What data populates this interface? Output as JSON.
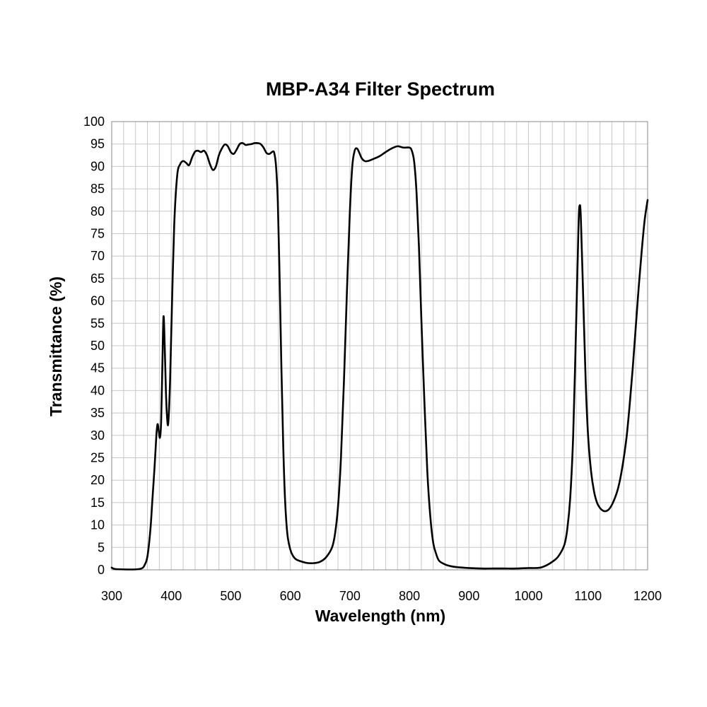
{
  "chart_data": {
    "type": "line",
    "title": "MBP-A34 Filter Spectrum",
    "xlabel": "Wavelength (nm)",
    "ylabel": "Transmittance (%)",
    "xlim": [
      300,
      1200
    ],
    "ylim": [
      0,
      100
    ],
    "x_ticks": [
      300,
      400,
      500,
      600,
      700,
      800,
      900,
      1000,
      1100,
      1200
    ],
    "y_ticks": [
      0,
      5,
      10,
      15,
      20,
      25,
      30,
      35,
      40,
      45,
      50,
      55,
      60,
      65,
      70,
      75,
      80,
      85,
      90,
      95,
      100
    ],
    "x_minor_step": 20,
    "grid": true,
    "legend": "none",
    "series": [
      {
        "color": "#000000",
        "points": [
          [
            300,
            0.5
          ],
          [
            305,
            0.2
          ],
          [
            320,
            0.1
          ],
          [
            340,
            0.1
          ],
          [
            350,
            0.3
          ],
          [
            355,
            1
          ],
          [
            360,
            3
          ],
          [
            365,
            9
          ],
          [
            368,
            15
          ],
          [
            372,
            23
          ],
          [
            375,
            30
          ],
          [
            377,
            32.5
          ],
          [
            379,
            31
          ],
          [
            381,
            29.5
          ],
          [
            383,
            33
          ],
          [
            385,
            45
          ],
          [
            387,
            56.5
          ],
          [
            389,
            50
          ],
          [
            391,
            40
          ],
          [
            393,
            34
          ],
          [
            395,
            32.8
          ],
          [
            398,
            42
          ],
          [
            401,
            58
          ],
          [
            405,
            77
          ],
          [
            410,
            88
          ],
          [
            415,
            90.5
          ],
          [
            420,
            91.2
          ],
          [
            425,
            90.8
          ],
          [
            430,
            90.3
          ],
          [
            435,
            92
          ],
          [
            440,
            93.3
          ],
          [
            445,
            93.5
          ],
          [
            450,
            93.2
          ],
          [
            455,
            93.5
          ],
          [
            460,
            92.5
          ],
          [
            465,
            90.5
          ],
          [
            470,
            89.2
          ],
          [
            475,
            90
          ],
          [
            480,
            92.5
          ],
          [
            485,
            94
          ],
          [
            490,
            94.9
          ],
          [
            495,
            94.5
          ],
          [
            500,
            93.2
          ],
          [
            505,
            92.8
          ],
          [
            510,
            93.8
          ],
          [
            515,
            95
          ],
          [
            520,
            95.2
          ],
          [
            525,
            94.8
          ],
          [
            530,
            94.9
          ],
          [
            535,
            95
          ],
          [
            540,
            95.2
          ],
          [
            545,
            95.2
          ],
          [
            550,
            95
          ],
          [
            555,
            94.2
          ],
          [
            560,
            93
          ],
          [
            565,
            92.8
          ],
          [
            570,
            93.3
          ],
          [
            573,
            93
          ],
          [
            576,
            90
          ],
          [
            579,
            82
          ],
          [
            582,
            65
          ],
          [
            585,
            45
          ],
          [
            588,
            28
          ],
          [
            591,
            16
          ],
          [
            595,
            8
          ],
          [
            600,
            4.5
          ],
          [
            605,
            3
          ],
          [
            610,
            2.3
          ],
          [
            620,
            1.8
          ],
          [
            630,
            1.5
          ],
          [
            640,
            1.5
          ],
          [
            650,
            1.8
          ],
          [
            660,
            2.8
          ],
          [
            670,
            5
          ],
          [
            675,
            8
          ],
          [
            680,
            14
          ],
          [
            685,
            25
          ],
          [
            690,
            42
          ],
          [
            695,
            62
          ],
          [
            700,
            80
          ],
          [
            704,
            90
          ],
          [
            708,
            93.5
          ],
          [
            712,
            94
          ],
          [
            716,
            93
          ],
          [
            720,
            91.8
          ],
          [
            725,
            91.2
          ],
          [
            730,
            91.2
          ],
          [
            740,
            91.7
          ],
          [
            750,
            92.3
          ],
          [
            760,
            93.2
          ],
          [
            770,
            94
          ],
          [
            780,
            94.5
          ],
          [
            790,
            94.2
          ],
          [
            800,
            94.2
          ],
          [
            804,
            93.5
          ],
          [
            808,
            91
          ],
          [
            812,
            84
          ],
          [
            816,
            72
          ],
          [
            820,
            56
          ],
          [
            825,
            38
          ],
          [
            830,
            22
          ],
          [
            835,
            12
          ],
          [
            840,
            6
          ],
          [
            845,
            3.5
          ],
          [
            850,
            2
          ],
          [
            860,
            1.2
          ],
          [
            870,
            0.8
          ],
          [
            880,
            0.6
          ],
          [
            900,
            0.4
          ],
          [
            920,
            0.3
          ],
          [
            940,
            0.3
          ],
          [
            960,
            0.3
          ],
          [
            980,
            0.3
          ],
          [
            1000,
            0.4
          ],
          [
            1010,
            0.4
          ],
          [
            1020,
            0.5
          ],
          [
            1030,
            1
          ],
          [
            1040,
            1.8
          ],
          [
            1050,
            3
          ],
          [
            1060,
            5.5
          ],
          [
            1065,
            9
          ],
          [
            1070,
            16
          ],
          [
            1075,
            30
          ],
          [
            1080,
            55
          ],
          [
            1084,
            77
          ],
          [
            1086,
            81.3
          ],
          [
            1088,
            78
          ],
          [
            1092,
            60
          ],
          [
            1096,
            42
          ],
          [
            1100,
            30
          ],
          [
            1105,
            22
          ],
          [
            1110,
            17.5
          ],
          [
            1115,
            15
          ],
          [
            1120,
            13.8
          ],
          [
            1125,
            13.2
          ],
          [
            1130,
            13.1
          ],
          [
            1135,
            13.5
          ],
          [
            1140,
            14.5
          ],
          [
            1145,
            16
          ],
          [
            1150,
            18
          ],
          [
            1155,
            21
          ],
          [
            1160,
            25
          ],
          [
            1165,
            30
          ],
          [
            1170,
            37
          ],
          [
            1175,
            45
          ],
          [
            1180,
            54
          ],
          [
            1185,
            63
          ],
          [
            1190,
            71
          ],
          [
            1195,
            78
          ],
          [
            1200,
            82.5
          ]
        ]
      }
    ]
  }
}
